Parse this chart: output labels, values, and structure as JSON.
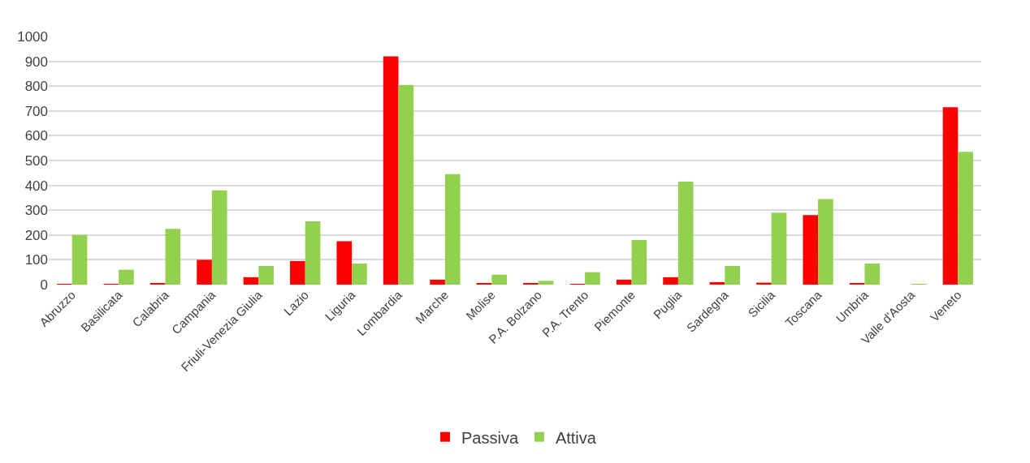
{
  "chart_data": {
    "type": "bar",
    "categories": [
      "Abruzzo",
      "Basilicata",
      "Calabria",
      "Campania",
      "Friuli-Venezia Giulia",
      "Lazio",
      "Liguria",
      "Lombardia",
      "Marche",
      "Molise",
      "P.A. Bolzano",
      "P.A. Trento",
      "Piemonte",
      "Puglia",
      "Sardegna",
      "Sicilia",
      "Toscana",
      "Umbria",
      "Valle d'Aosta",
      "Veneto"
    ],
    "series": [
      {
        "name": "Passiva",
        "color": "#ff0000",
        "values": [
          3,
          2,
          5,
          100,
          30,
          95,
          175,
          920,
          20,
          5,
          5,
          3,
          20,
          30,
          10,
          8,
          280,
          5,
          0,
          715
        ]
      },
      {
        "name": "Attiva",
        "color": "#92d050",
        "values": [
          200,
          60,
          225,
          380,
          75,
          255,
          85,
          805,
          445,
          40,
          15,
          50,
          180,
          415,
          75,
          290,
          345,
          85,
          3,
          535
        ]
      }
    ],
    "ylim": [
      0,
      1000
    ],
    "yticks": [
      0,
      100,
      200,
      300,
      400,
      500,
      600,
      700,
      800,
      900,
      1000
    ],
    "grid": "y",
    "legend": "bottom"
  }
}
